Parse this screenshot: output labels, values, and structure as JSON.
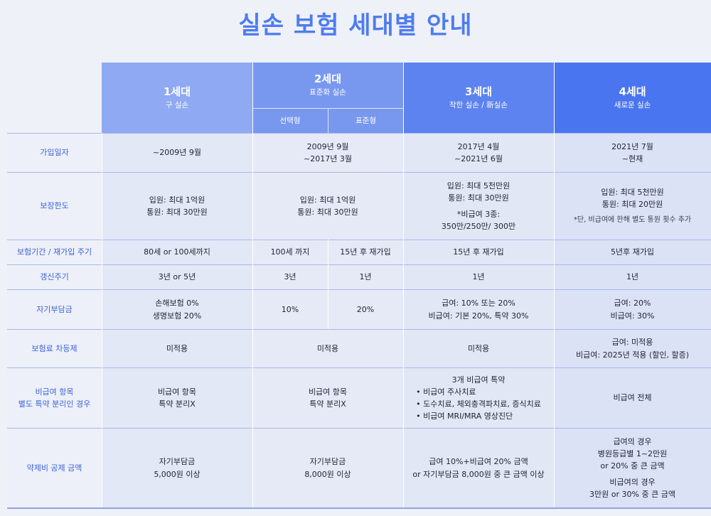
{
  "title": "실손 보험 세대별 안내",
  "headers": {
    "gen1": {
      "name": "1세대",
      "sub": "구 실손"
    },
    "gen2": {
      "name": "2세대",
      "sub": "표준화 실손",
      "split_a": "선택형",
      "split_b": "표준형"
    },
    "gen3": {
      "name": "3세대",
      "sub": "착한 실손 / 新실손"
    },
    "gen4": {
      "name": "4세대",
      "sub": "새로운 실손"
    }
  },
  "rows": {
    "join_date": {
      "label": "가입일자",
      "g1": "~2009년 9월",
      "g2_line1": "2009년 9월",
      "g2_line2": "~2017년 3월",
      "g3_line1": "2017년 4월",
      "g3_line2": "~2021년 6월",
      "g4_line1": "2021년 7월",
      "g4_line2": "~현재"
    },
    "coverage": {
      "label": "보장한도",
      "g1_line1": "입원: 최대 1억원",
      "g1_line2": "통원: 최대 30만원",
      "g2_line1": "입원: 최대 1억원",
      "g2_line2": "통원: 최대 30만원",
      "g3_line1": "입원: 최대 5천만원",
      "g3_line2": "통원: 최대 30만원",
      "g3_line3": "*비급여 3종:",
      "g3_line4": "350만/250만/ 300만",
      "g4_line1": "입원: 최대 5천만원",
      "g4_line2": "통원: 최대 20만원",
      "g4_note": "*단, 비급여에 한해 별도 통원 횟수 추가"
    },
    "period": {
      "label": "보험기간 / 재가입 주기",
      "g1": "80세 or 100세까지",
      "g2a": "100세 까지",
      "g2b": "15년 후 재가입",
      "g3": "15년 후 재가입",
      "g4": "5년후 재가입"
    },
    "renewal": {
      "label": "갱신주기",
      "g1": "3년 or 5년",
      "g2a": "3년",
      "g2b": "1년",
      "g3": "1년",
      "g4": "1년"
    },
    "deductible": {
      "label": "자기부담금",
      "g1_line1": "손해보험 0%",
      "g1_line2": "생명보험 20%",
      "g2a": "10%",
      "g2b": "20%",
      "g3_line1": "급여: 10% 또는 20%",
      "g3_line2": "비급여: 기본 20%, 특약 30%",
      "g4_line1": "급여: 20%",
      "g4_line2": "비급여: 30%"
    },
    "premium_diff": {
      "label": "보험료 차등제",
      "g1": "미적용",
      "g2": "미적용",
      "g3": "미적용",
      "g4_line1": "급여: 미적용",
      "g4_line2": "비급여: 2025년 적용 (할인, 할증)"
    },
    "noncovered": {
      "label_line1": "비급여 항목",
      "label_line2": "별도 특약 분리인 경우",
      "g1_line1": "비급여 항목",
      "g1_line2": "특약 분리X",
      "g2_line1": "비급여 항목",
      "g2_line2": "특약 분리X",
      "g3_head": "3개 비급여 특약",
      "g3_items": [
        "비급여 주사치료",
        "도수치료, 체외충격파치료, 증식치료",
        "비급여 MRI/MRA 영상진단"
      ],
      "g4": "비급여 전체"
    },
    "drug_deduct": {
      "label": "약제비 공제 금액",
      "g1_line1": "자기부담금",
      "g1_line2": "5,000원 이상",
      "g2_line1": "자기부담금",
      "g2_line2": "8,000원 이상",
      "g3_line1": "급여 10%+비급여 20% 금액",
      "g3_line2": "or 자기부담금 8,000원 중 큰 금액 이상",
      "g4_line1": "급여의 경우",
      "g4_line2": "병원등급별 1~2만원",
      "g4_line3": "or 20% 중 큰 금액",
      "g4_line4": "비급여의 경우",
      "g4_line5": "3만원 or 30% 중 큰 금액"
    }
  },
  "colors": {
    "title": "#4e7cf0",
    "gen1": "#8fa9f2",
    "gen2": "#7897ef",
    "gen3": "#5c83ef",
    "gen4": "#4a75f0",
    "row_label": "#3d63d6"
  }
}
